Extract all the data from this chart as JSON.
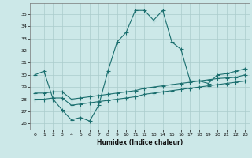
{
  "xlabel": "Humidex (Indice chaleur)",
  "bg_color": "#cce8e8",
  "grid_color": "#aacccc",
  "line_color": "#1a6e6e",
  "xlim": [
    -0.5,
    23.5
  ],
  "ylim": [
    25.5,
    35.9
  ],
  "yticks": [
    26,
    27,
    28,
    29,
    30,
    31,
    32,
    33,
    34,
    35
  ],
  "xticks": [
    0,
    1,
    2,
    3,
    4,
    5,
    6,
    7,
    8,
    9,
    10,
    11,
    12,
    13,
    14,
    15,
    16,
    17,
    18,
    19,
    20,
    21,
    22,
    23
  ],
  "series1_x": [
    0,
    1,
    2,
    3,
    4,
    5,
    6,
    7,
    8,
    9,
    10,
    11,
    12,
    13,
    14,
    15,
    16,
    17,
    18,
    19,
    20,
    21,
    22,
    23
  ],
  "series1_y": [
    30.0,
    30.3,
    28.0,
    27.1,
    26.3,
    26.5,
    26.2,
    27.5,
    30.3,
    32.7,
    33.5,
    35.3,
    35.3,
    34.5,
    35.3,
    32.7,
    32.1,
    29.5,
    29.5,
    29.3,
    30.0,
    30.1,
    30.3,
    30.5
  ],
  "series2_x": [
    0,
    1,
    2,
    3,
    4,
    5,
    6,
    7,
    8,
    9,
    10,
    11,
    12,
    13,
    14,
    15,
    16,
    17,
    18,
    19,
    20,
    21,
    22,
    23
  ],
  "series2_y": [
    28.5,
    28.5,
    28.6,
    28.6,
    28.0,
    28.1,
    28.2,
    28.3,
    28.4,
    28.5,
    28.6,
    28.7,
    28.9,
    29.0,
    29.1,
    29.2,
    29.3,
    29.4,
    29.5,
    29.6,
    29.7,
    29.75,
    29.8,
    30.0
  ],
  "series3_x": [
    0,
    1,
    2,
    3,
    4,
    5,
    6,
    7,
    8,
    9,
    10,
    11,
    12,
    13,
    14,
    15,
    16,
    17,
    18,
    19,
    20,
    21,
    22,
    23
  ],
  "series3_y": [
    28.0,
    28.0,
    28.1,
    28.1,
    27.5,
    27.6,
    27.7,
    27.8,
    27.9,
    28.0,
    28.1,
    28.2,
    28.4,
    28.5,
    28.6,
    28.7,
    28.8,
    28.9,
    29.0,
    29.1,
    29.2,
    29.3,
    29.4,
    29.5
  ]
}
